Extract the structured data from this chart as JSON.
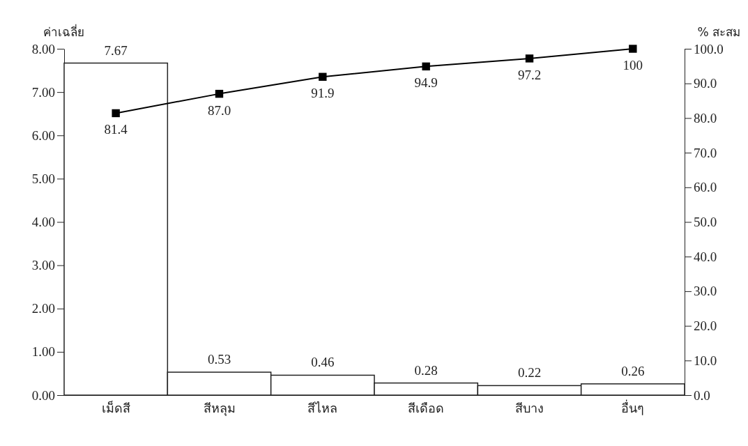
{
  "chart_data": {
    "type": "bar",
    "ylabel": "ค่าเฉลี่ย",
    "y2label": "% สะสม",
    "categories": [
      "เม็ดสี",
      "สีหลุม",
      "สีไหล",
      "สีเดือด",
      "สีบาง",
      "อื่นๆ"
    ],
    "series": [
      {
        "color": "#ffffff",
        "values": [
          7.67,
          0.53,
          0.46,
          0.28,
          0.22,
          0.26
        ],
        "value_labels": [
          "7.67",
          "0.53",
          "0.46",
          "0.28",
          "0.22",
          "0.26"
        ]
      },
      {
        "type": "line",
        "axis": "y2",
        "color": "#000000",
        "marker": "square",
        "line_style": "solid",
        "values": [
          81.4,
          87.0,
          91.9,
          94.9,
          97.2,
          100
        ],
        "value_labels": [
          "81.4",
          "87.0",
          "91.9",
          "94.9",
          "97.2",
          "100"
        ]
      }
    ],
    "ylim": [
      0,
      8
    ],
    "yticks": [
      {
        "value": 0,
        "label": "0.00"
      },
      {
        "value": 1,
        "label": "1.00"
      },
      {
        "value": 2,
        "label": "2.00"
      },
      {
        "value": 3,
        "label": "3.00"
      },
      {
        "value": 4,
        "label": "4.00"
      },
      {
        "value": 5,
        "label": "5.00"
      },
      {
        "value": 6,
        "label": "6.00"
      },
      {
        "value": 7,
        "label": "7.00"
      },
      {
        "value": 8,
        "label": "8.00"
      }
    ],
    "y2lim": [
      0,
      100
    ],
    "y2ticks": [
      {
        "value": 0,
        "label": "0.0"
      },
      {
        "value": 10,
        "label": "10.0"
      },
      {
        "value": 20,
        "label": "20.0"
      },
      {
        "value": 30,
        "label": "30.0"
      },
      {
        "value": 40,
        "label": "40.0"
      },
      {
        "value": 50,
        "label": "50.0"
      },
      {
        "value": 60,
        "label": "60.0"
      },
      {
        "value": 70,
        "label": "70.0"
      },
      {
        "value": 80,
        "label": "80.0"
      },
      {
        "value": 90,
        "label": "90.0"
      },
      {
        "value": 100,
        "label": "100.0"
      }
    ]
  }
}
